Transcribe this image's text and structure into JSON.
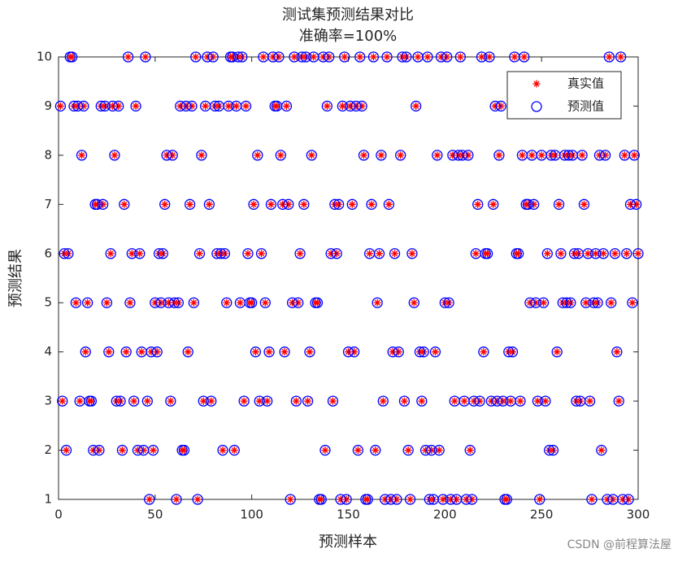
{
  "chart_data": {
    "type": "scatter",
    "title": "测试集预测结果对比",
    "subtitle": "准确率=100%",
    "xlabel": "预测样本",
    "ylabel": "预测结果",
    "watermark": "CSDN @前程算法屋",
    "xlim": [
      0,
      300
    ],
    "ylim": [
      1,
      10
    ],
    "xticks": [
      0,
      50,
      100,
      150,
      200,
      250,
      300
    ],
    "yticks": [
      1,
      2,
      3,
      4,
      5,
      6,
      7,
      8,
      9,
      10
    ],
    "legend": "upper right",
    "x": [
      1,
      2,
      3,
      4,
      5,
      6,
      7,
      8,
      9,
      10,
      11,
      12,
      13,
      14,
      15,
      16,
      17,
      18,
      19,
      20,
      21,
      22,
      23,
      24,
      25,
      26,
      27,
      28,
      29,
      30,
      31,
      32,
      33,
      34,
      35,
      36,
      37,
      38,
      39,
      40,
      41,
      42,
      43,
      44,
      45,
      46,
      47,
      48,
      49,
      50,
      51,
      52,
      53,
      54,
      55,
      56,
      57,
      58,
      59,
      60,
      61,
      62,
      63,
      64,
      65,
      66,
      67,
      68,
      69,
      70,
      71,
      72,
      73,
      74,
      75,
      76,
      77,
      78,
      79,
      80,
      81,
      82,
      83,
      84,
      85,
      86,
      87,
      88,
      89,
      90,
      91,
      92,
      93,
      94,
      95,
      96,
      97,
      98,
      99,
      100,
      101,
      102,
      103,
      104,
      105,
      106,
      107,
      108,
      109,
      110,
      111,
      112,
      113,
      114,
      115,
      116,
      117,
      118,
      119,
      120,
      121,
      122,
      123,
      124,
      125,
      126,
      127,
      128,
      129,
      130,
      131,
      132,
      133,
      134,
      135,
      136,
      137,
      138,
      139,
      140,
      141,
      142,
      143,
      144,
      145,
      146,
      147,
      148,
      149,
      150,
      151,
      152,
      153,
      154,
      155,
      156,
      157,
      158,
      159,
      160,
      161,
      162,
      163,
      164,
      165,
      166,
      167,
      168,
      169,
      170,
      171,
      172,
      173,
      174,
      175,
      176,
      177,
      178,
      179,
      180,
      181,
      182,
      183,
      184,
      185,
      186,
      187,
      188,
      189,
      190,
      191,
      192,
      193,
      194,
      195,
      196,
      197,
      198,
      199,
      200,
      201,
      202,
      203,
      204,
      205,
      206,
      207,
      208,
      209,
      210,
      211,
      212,
      213,
      214,
      215,
      216,
      217,
      218,
      219,
      220,
      221,
      222,
      223,
      224,
      225,
      226,
      227,
      228,
      229,
      230,
      231,
      232,
      233,
      234,
      235,
      236,
      237,
      238,
      239,
      240,
      241,
      242,
      243,
      244,
      245,
      246,
      247,
      248,
      249,
      250,
      251,
      252,
      253,
      254,
      255,
      256,
      257,
      258,
      259,
      260,
      261,
      262,
      263,
      264,
      265,
      266,
      267,
      268,
      269,
      270,
      271,
      272,
      273,
      274,
      275,
      276,
      277,
      278,
      279,
      280,
      281,
      282,
      283,
      284,
      285,
      286,
      287,
      288,
      289,
      290,
      291,
      292,
      293,
      294,
      295,
      296,
      297,
      298,
      299,
      300
    ],
    "series": [
      {
        "name": "真实值",
        "color": "#ff0000",
        "marker": "asterisk",
        "values": [
          9,
          3,
          6,
          2,
          6,
          10,
          10,
          9,
          5,
          9,
          3,
          8,
          9,
          4,
          5,
          3,
          3,
          2,
          7,
          7,
          2,
          9,
          7,
          9,
          5,
          4,
          6,
          9,
          8,
          3,
          9,
          3,
          2,
          7,
          4,
          10,
          5,
          6,
          3,
          9,
          2,
          6,
          4,
          2,
          10,
          3,
          1,
          4,
          2,
          5,
          4,
          6,
          5,
          6,
          7,
          8,
          5,
          3,
          8,
          5,
          1,
          5,
          9,
          2,
          2,
          9,
          4,
          7,
          9,
          5,
          10,
          1,
          6,
          8,
          3,
          9,
          10,
          7,
          3,
          10,
          9,
          6,
          9,
          6,
          2,
          6,
          5,
          9,
          10,
          10,
          2,
          9,
          10,
          5,
          10,
          3,
          9,
          6,
          5,
          5,
          7,
          4,
          8,
          3,
          6,
          10,
          5,
          3,
          4,
          7,
          10,
          9,
          9,
          10,
          8,
          7,
          4,
          9,
          7,
          1,
          5,
          10,
          3,
          5,
          6,
          10,
          7,
          10,
          3,
          4,
          8,
          10,
          5,
          5,
          1,
          1,
          10,
          2,
          9,
          10,
          6,
          3,
          7,
          6,
          7,
          1,
          9,
          10,
          1,
          4,
          9,
          7,
          4,
          9,
          2,
          10,
          9,
          8,
          1,
          1,
          6,
          7,
          10,
          2,
          5,
          6,
          8,
          3,
          1,
          10,
          7,
          1,
          4,
          6,
          1,
          4,
          8,
          10,
          3,
          10,
          2,
          1,
          6,
          5,
          9,
          10,
          4,
          3,
          4,
          2,
          10,
          1,
          2,
          1,
          4,
          8,
          2,
          10,
          1,
          5,
          10,
          5,
          1,
          8,
          3,
          1,
          8,
          10,
          8,
          3,
          1,
          8,
          2,
          1,
          3,
          6,
          7,
          3,
          10,
          4,
          6,
          6,
          10,
          3,
          7,
          9,
          3,
          8,
          9,
          3,
          1,
          1,
          4,
          3,
          4,
          10,
          6,
          6,
          3,
          8,
          10,
          7,
          7,
          5,
          8,
          7,
          5,
          3,
          1,
          8,
          5,
          3,
          6,
          2,
          8,
          2,
          8,
          4,
          7,
          6,
          5,
          8,
          5,
          8,
          5,
          8,
          6,
          3,
          6,
          3,
          8,
          7,
          5,
          6,
          3,
          1,
          5,
          6,
          5,
          8,
          2,
          6,
          8,
          1,
          10,
          5,
          1,
          6,
          4,
          3,
          10,
          1,
          8,
          6,
          1,
          7,
          5,
          8,
          7,
          6
        ]
      },
      {
        "name": "预测值",
        "color": "#0000ff",
        "marker": "circle",
        "values": [
          9,
          3,
          6,
          2,
          6,
          10,
          10,
          9,
          5,
          9,
          3,
          8,
          9,
          4,
          5,
          3,
          3,
          2,
          7,
          7,
          2,
          9,
          7,
          9,
          5,
          4,
          6,
          9,
          8,
          3,
          9,
          3,
          2,
          7,
          4,
          10,
          5,
          6,
          3,
          9,
          2,
          6,
          4,
          2,
          10,
          3,
          1,
          4,
          2,
          5,
          4,
          6,
          5,
          6,
          7,
          8,
          5,
          3,
          8,
          5,
          1,
          5,
          9,
          2,
          2,
          9,
          4,
          7,
          9,
          5,
          10,
          1,
          6,
          8,
          3,
          9,
          10,
          7,
          3,
          10,
          9,
          6,
          9,
          6,
          2,
          6,
          5,
          9,
          10,
          10,
          2,
          9,
          10,
          5,
          10,
          3,
          9,
          6,
          5,
          5,
          7,
          4,
          8,
          3,
          6,
          10,
          5,
          3,
          4,
          7,
          10,
          9,
          9,
          10,
          8,
          7,
          4,
          9,
          7,
          1,
          5,
          10,
          3,
          5,
          6,
          10,
          7,
          10,
          3,
          4,
          8,
          10,
          5,
          5,
          1,
          1,
          10,
          2,
          9,
          10,
          6,
          3,
          7,
          6,
          7,
          1,
          9,
          10,
          1,
          4,
          9,
          7,
          4,
          9,
          2,
          10,
          9,
          8,
          1,
          1,
          6,
          7,
          10,
          2,
          5,
          6,
          8,
          3,
          1,
          10,
          7,
          1,
          4,
          6,
          1,
          4,
          8,
          10,
          3,
          10,
          2,
          1,
          6,
          5,
          9,
          10,
          4,
          3,
          4,
          2,
          10,
          1,
          2,
          1,
          4,
          8,
          2,
          10,
          1,
          5,
          10,
          5,
          1,
          8,
          3,
          1,
          8,
          10,
          8,
          3,
          1,
          8,
          2,
          1,
          3,
          6,
          7,
          3,
          10,
          4,
          6,
          6,
          10,
          3,
          7,
          9,
          3,
          8,
          9,
          3,
          1,
          1,
          4,
          3,
          4,
          10,
          6,
          6,
          3,
          8,
          10,
          7,
          7,
          5,
          8,
          7,
          5,
          3,
          1,
          8,
          5,
          3,
          6,
          2,
          8,
          2,
          8,
          4,
          7,
          6,
          5,
          8,
          5,
          8,
          5,
          8,
          6,
          3,
          6,
          3,
          8,
          7,
          5,
          6,
          3,
          1,
          5,
          6,
          5,
          8,
          2,
          6,
          8,
          1,
          10,
          5,
          1,
          6,
          4,
          3,
          10,
          1,
          8,
          6,
          1,
          7,
          5,
          8,
          7,
          6
        ]
      }
    ]
  }
}
